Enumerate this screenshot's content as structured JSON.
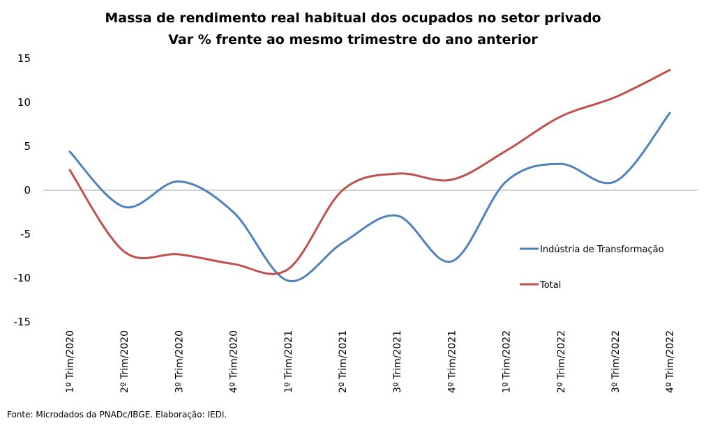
{
  "chart_data": {
    "type": "line",
    "title": "Massa de rendimento real habitual dos ocupados no setor privado",
    "subtitle": "Var % frente ao mesmo trimestre do ano anterior",
    "categories": [
      "1º Trim/2020",
      "2º Trim/2020",
      "3º Trim/2020",
      "4º Trim/2020",
      "1º Trim/2021",
      "2º Trim/2021",
      "3º Trim/2021",
      "4º Trim/2021",
      "1º Trim/2022",
      "2º Trim/2022",
      "3º Trim/2022",
      "4º Trim/2022"
    ],
    "series": [
      {
        "name": "Indústria de Transformação",
        "color": "#4F81BD",
        "values": [
          4.4,
          -1.9,
          1.0,
          -2.5,
          -10.3,
          -6.0,
          -2.9,
          -8.1,
          1.0,
          3.0,
          1.0,
          8.8
        ]
      },
      {
        "name": "Total",
        "color": "#C0504D",
        "values": [
          2.3,
          -7.0,
          -7.3,
          -8.4,
          -9.0,
          0.0,
          1.9,
          1.2,
          4.5,
          8.4,
          10.6,
          13.7
        ]
      }
    ],
    "ylim": [
      -15,
      15
    ],
    "yticks": [
      15,
      10,
      5,
      0,
      -5,
      -10,
      -15
    ],
    "xlabel": "",
    "ylabel": "",
    "grid": false,
    "legend": "right"
  },
  "source": "Fonte: Microdados da PNADc/IBGE. Elaboração: IEDI."
}
